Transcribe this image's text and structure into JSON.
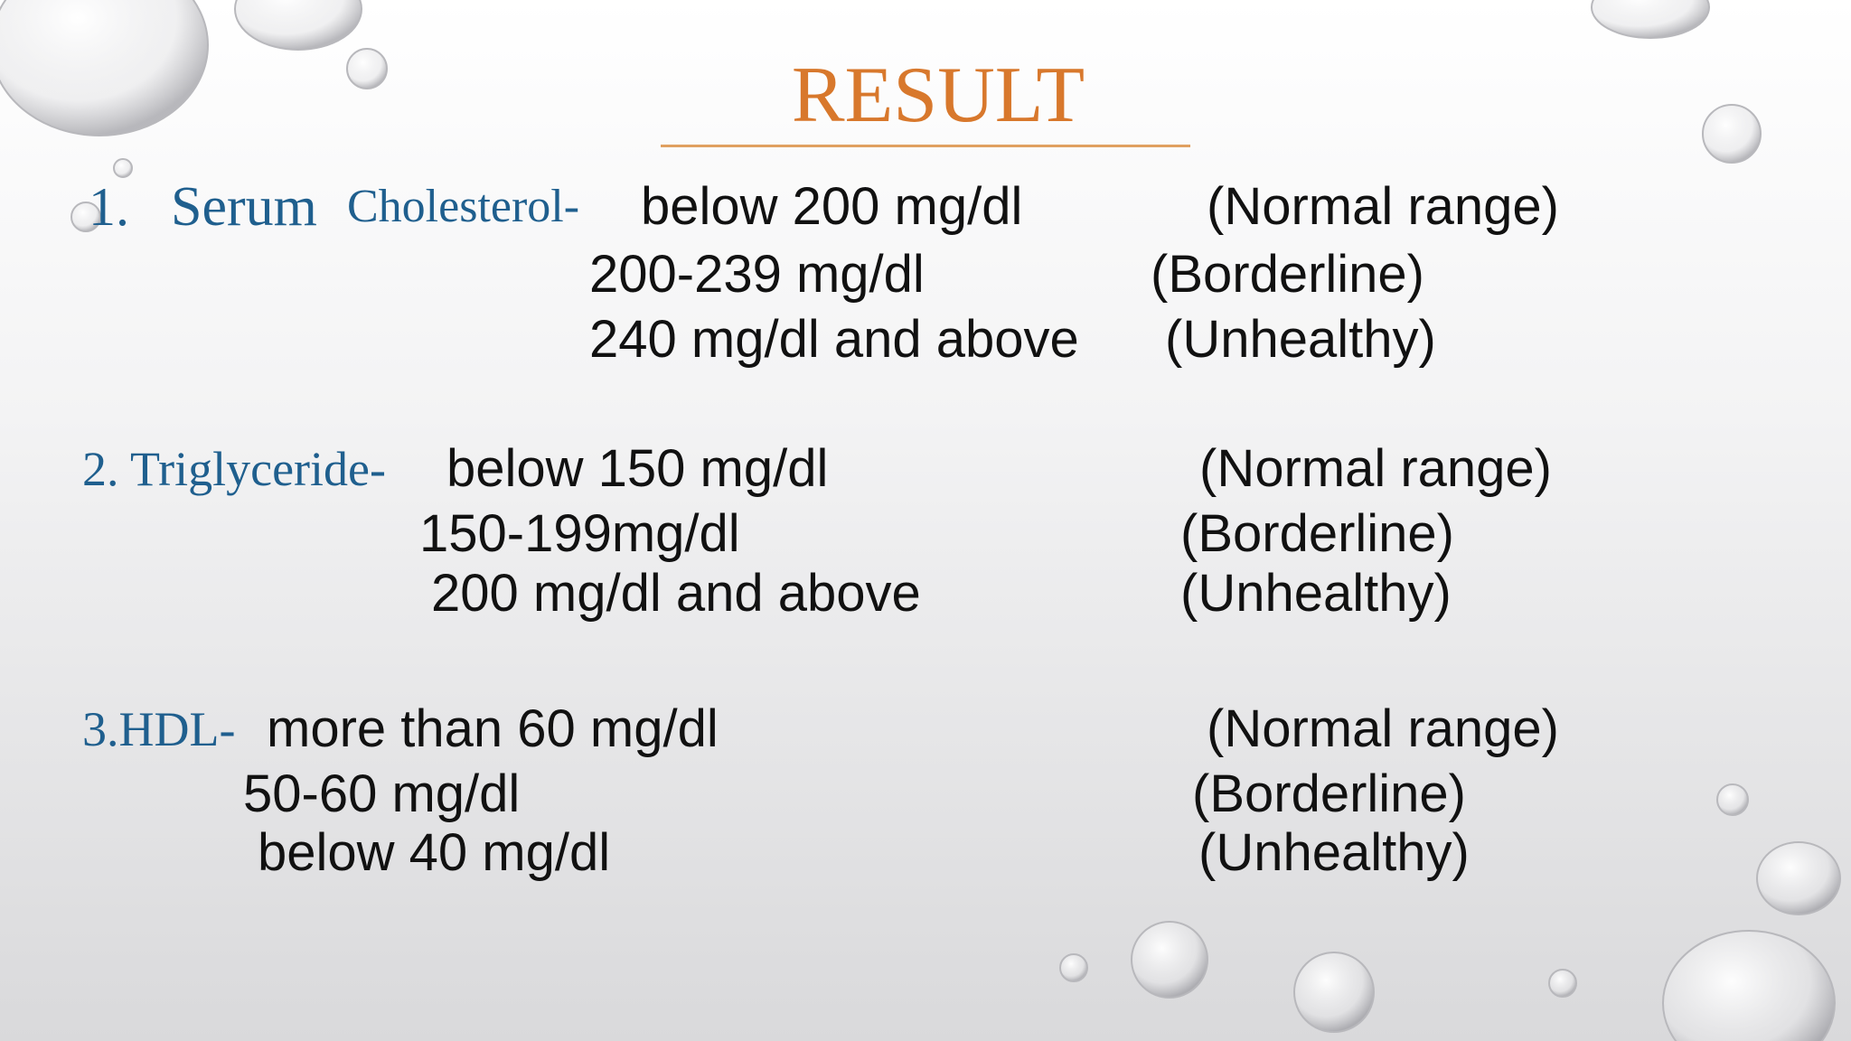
{
  "title": "RESULT",
  "sections": [
    {
      "label_parts": [
        "1.",
        "Serum",
        "Cholesterol-"
      ],
      "rows": [
        {
          "range": "below 200 mg/dl",
          "status": "(Normal range)"
        },
        {
          "range": "200-239 mg/dl",
          "status": "(Borderline)"
        },
        {
          "range": "240 mg/dl and above",
          "status": "(Unhealthy)"
        }
      ]
    },
    {
      "label_parts": [
        "2. Triglyceride-"
      ],
      "rows": [
        {
          "range": "below 150 mg/dl",
          "status": "(Normal range)"
        },
        {
          "range": "150-199mg/dl",
          "status": "(Borderline)"
        },
        {
          "range": "200 mg/dl and above",
          "status": "(Unhealthy)"
        }
      ]
    },
    {
      "label_parts": [
        "3.HDL-"
      ],
      "rows": [
        {
          "range": "more than 60 mg/dl",
          "status": "(Normal range)"
        },
        {
          "range": "50-60 mg/dl",
          "status": "(Borderline)"
        },
        {
          "range": "below 40 mg/dl",
          "status": "(Unhealthy)"
        }
      ]
    }
  ]
}
